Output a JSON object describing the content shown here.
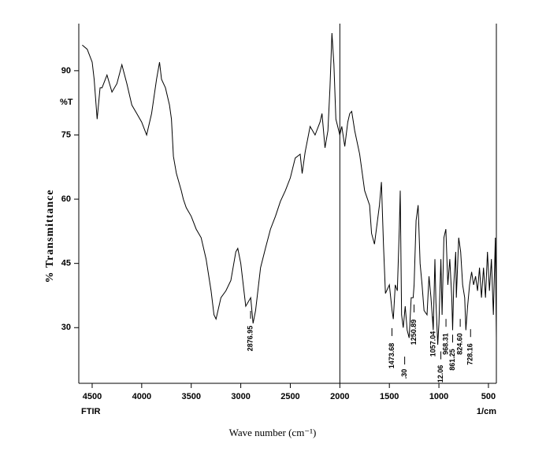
{
  "chart_data": {
    "type": "line",
    "y_unit_label": "%T",
    "x_left_label": "FTIR",
    "x_right_label": "1/cm",
    "xlabel": "Wave number (cm⁻¹)",
    "ylabel": "% Transmittance",
    "color": "#000000",
    "xlim": [
      4635,
      420
    ],
    "ylim": [
      17,
      101
    ],
    "xticks": [
      4500,
      4000,
      3500,
      3000,
      2500,
      2000,
      1500,
      1000,
      500
    ],
    "yticks": [
      30,
      45,
      60,
      75,
      90
    ],
    "reference_lines": [
      2000
    ],
    "series": [
      {
        "name": "FTIR",
        "x": [
          4600,
          4550,
          4500,
          4480,
          4450,
          4420,
          4400,
          4350,
          4300,
          4250,
          4200,
          4150,
          4100,
          4050,
          4000,
          3950,
          3900,
          3850,
          3820,
          3800,
          3760,
          3720,
          3700,
          3680,
          3650,
          3600,
          3580,
          3550,
          3500,
          3450,
          3400,
          3350,
          3300,
          3270,
          3250,
          3200,
          3150,
          3100,
          3050,
          3030,
          3000,
          2950,
          2900,
          2876,
          2850,
          2800,
          2750,
          2700,
          2650,
          2600,
          2550,
          2500,
          2450,
          2400,
          2380,
          2350,
          2300,
          2250,
          2200,
          2180,
          2150,
          2120,
          2100,
          2080,
          2060,
          2040,
          2000,
          1980,
          1950,
          1920,
          1900,
          1880,
          1850,
          1800,
          1750,
          1700,
          1680,
          1650,
          1620,
          1600,
          1580,
          1560,
          1540,
          1500,
          1473,
          1460,
          1440,
          1420,
          1400,
          1390,
          1377,
          1360,
          1340,
          1320,
          1300,
          1280,
          1260,
          1250,
          1230,
          1210,
          1190,
          1170,
          1150,
          1120,
          1100,
          1080,
          1057,
          1040,
          1030,
          1012,
          1000,
          980,
          968,
          950,
          930,
          910,
          890,
          870,
          861,
          850,
          830,
          824,
          800,
          780,
          760,
          740,
          728,
          710,
          690,
          670,
          650,
          630,
          610,
          590,
          570,
          550,
          530,
          510,
          490,
          470,
          450,
          430,
          420
        ],
        "values": [
          96,
          95,
          92,
          88,
          78.7,
          86,
          86,
          89,
          85,
          87,
          91.4,
          87,
          82,
          80,
          78,
          75,
          80,
          88,
          92,
          88,
          86,
          82,
          78.7,
          70,
          66,
          62,
          60,
          58,
          56,
          53,
          51,
          46,
          38.6,
          33,
          32,
          37,
          38.6,
          41,
          47.7,
          48.5,
          45,
          35,
          37,
          31,
          34,
          44,
          48.6,
          53,
          56,
          59.5,
          62,
          65,
          69.6,
          70.5,
          66,
          71,
          77,
          75,
          78,
          80,
          72,
          76,
          86,
          98.8,
          91.5,
          78.7,
          75,
          77,
          72.3,
          78,
          80,
          80.5,
          76,
          70.5,
          62,
          58.6,
          52,
          49.5,
          55,
          58.6,
          64,
          49.5,
          38,
          40,
          34,
          32,
          40,
          38.6,
          53,
          62,
          33,
          30,
          35,
          29.4,
          27.6,
          37,
          37,
          40,
          55,
          58.6,
          45,
          40,
          34,
          33,
          42,
          37,
          29.4,
          46,
          36,
          26,
          31,
          46,
          33,
          51,
          53,
          40,
          46,
          37,
          29.4,
          40,
          47.7,
          37,
          51,
          47.7,
          40,
          37,
          29.4,
          35,
          40,
          43,
          40,
          42,
          38.6,
          44,
          37,
          44,
          37,
          47.7,
          38.6,
          46,
          33,
          51,
          27.6
        ]
      }
    ],
    "annotations": [
      {
        "text": "2876.95",
        "x": 2876.95
      },
      {
        "text": "1473.68",
        "x": 1473.68
      },
      {
        "text": ".30",
        "x": 1377.3
      },
      {
        "text": "1250.89",
        "x": 1250.89
      },
      {
        "text": "1057.04",
        "x": 1057.04
      },
      {
        "text": "12.06",
        "x": 1012.06
      },
      {
        "text": "968.31",
        "x": 968.31
      },
      {
        "text": "861.25",
        "x": 861.25
      },
      {
        "text": "824.60",
        "x": 824.6
      },
      {
        "text": "728.16",
        "x": 728.16
      }
    ]
  }
}
